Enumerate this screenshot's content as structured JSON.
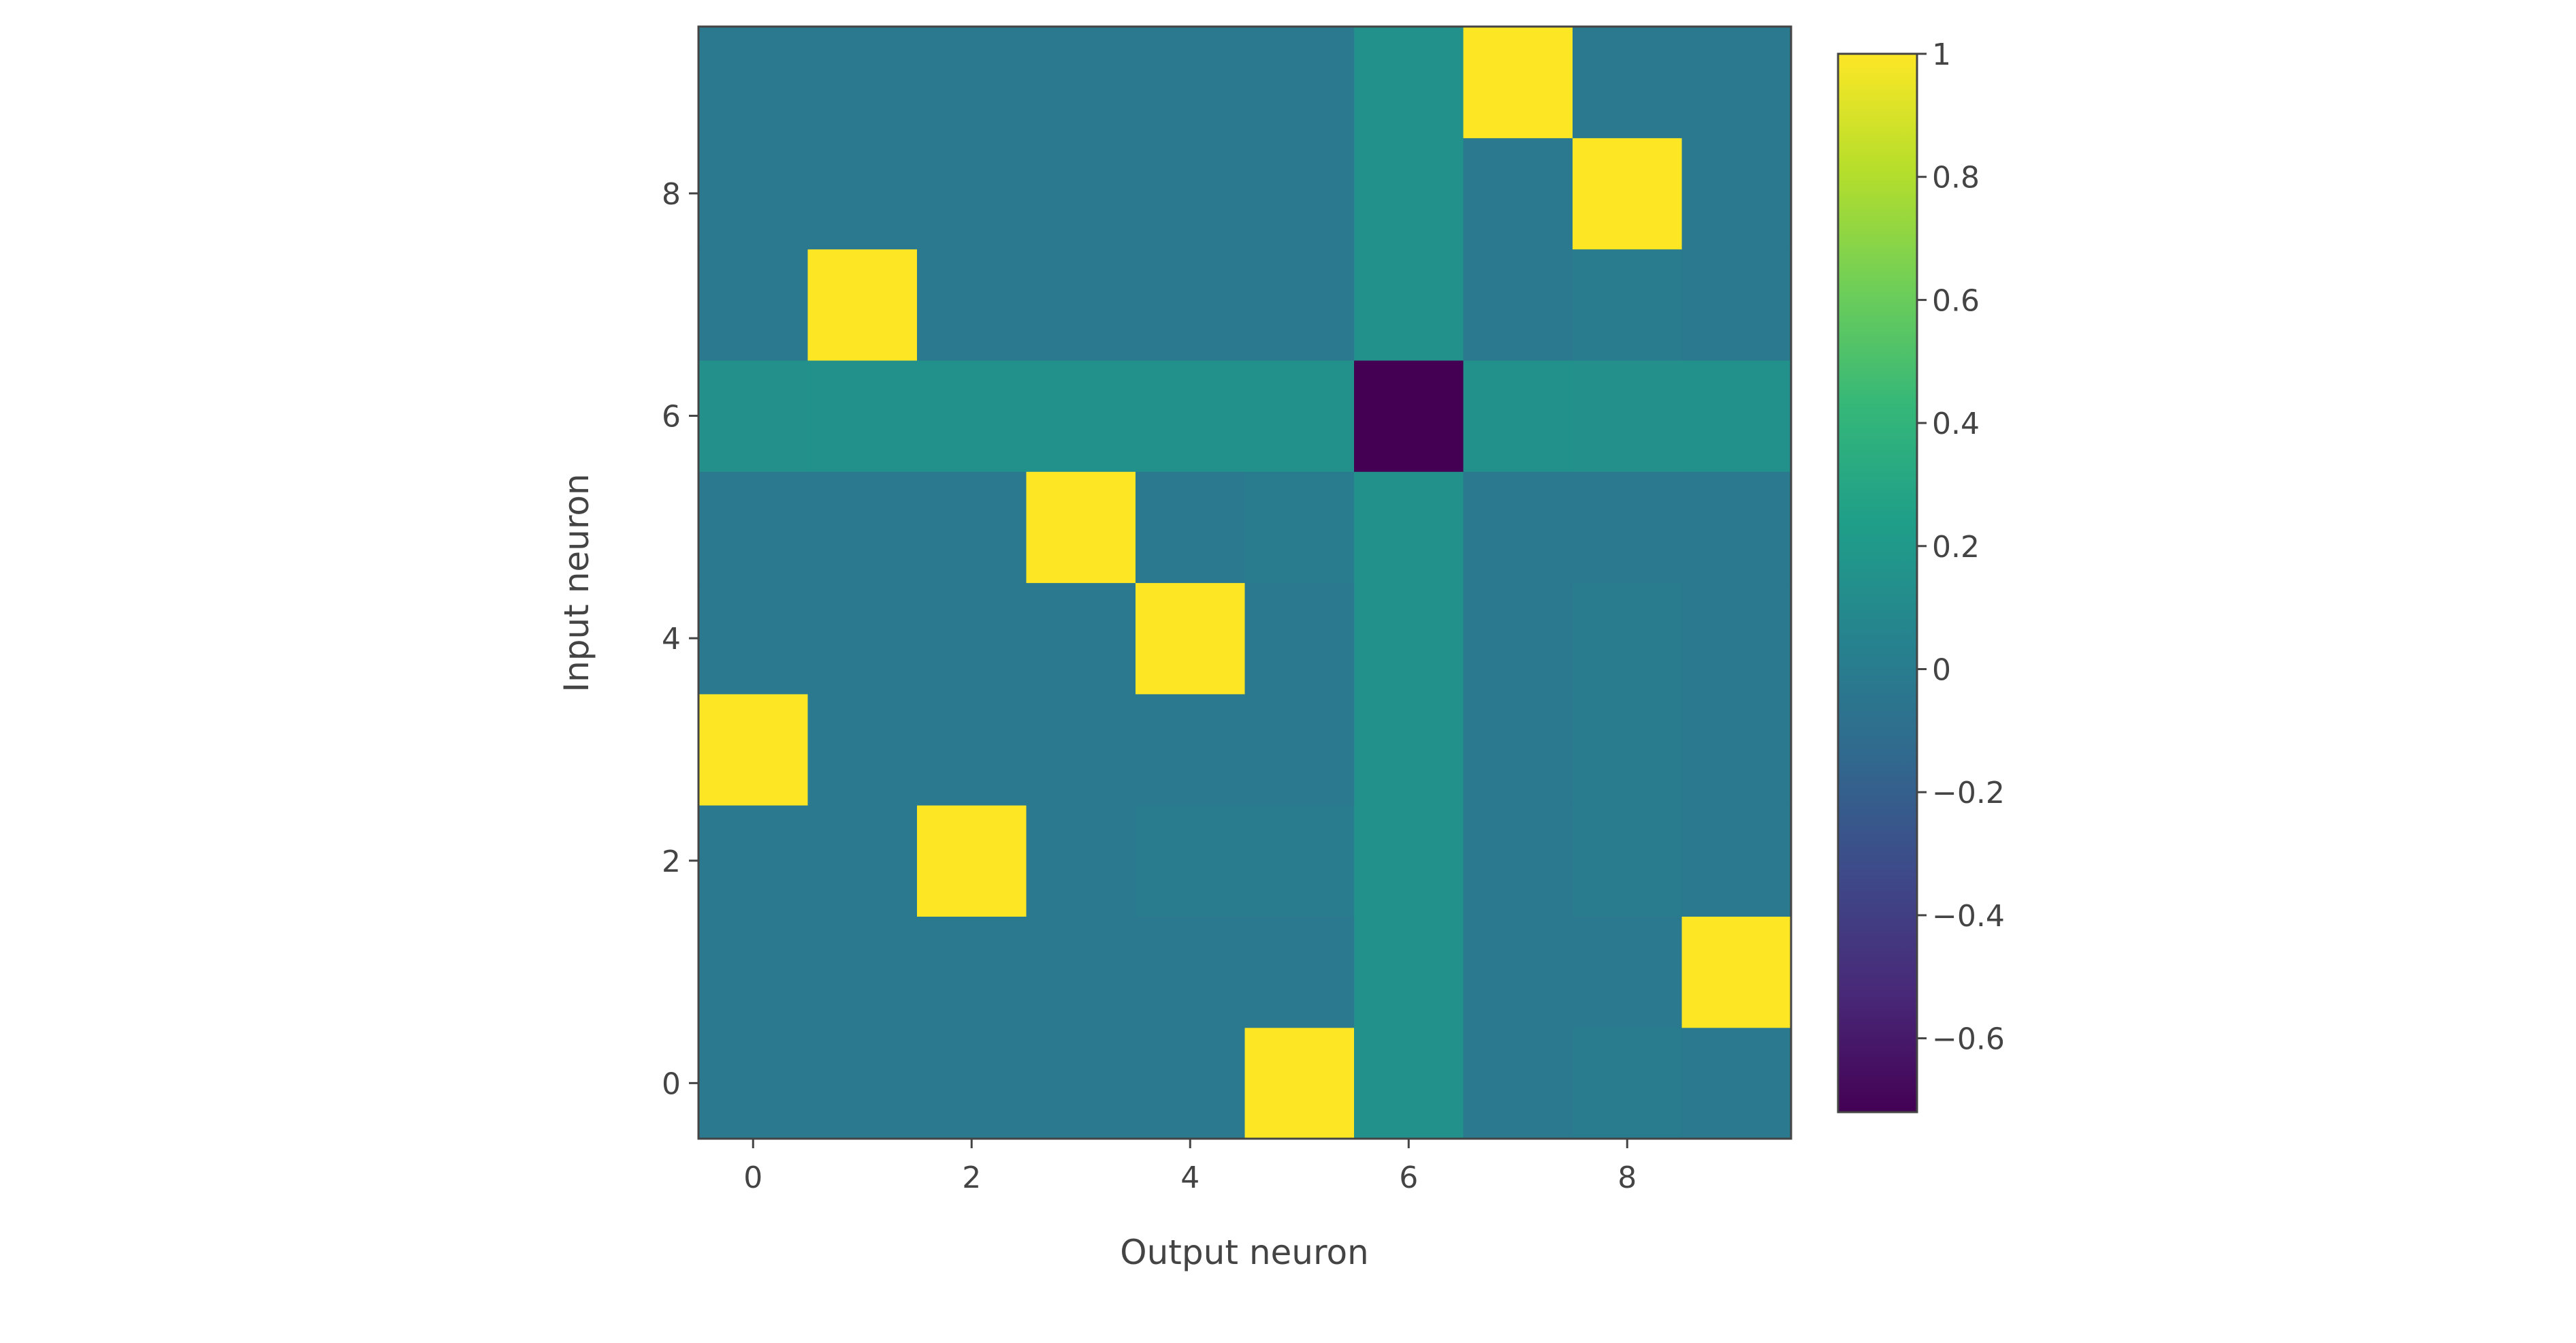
{
  "chart_data": {
    "type": "heatmap",
    "xlabel": "Output neuron",
    "ylabel": "Input neuron",
    "x": [
      0,
      1,
      2,
      3,
      4,
      5,
      6,
      7,
      8,
      9
    ],
    "y": [
      0,
      1,
      2,
      3,
      4,
      5,
      6,
      7,
      8,
      9
    ],
    "x_tick_labels": [
      "0",
      "2",
      "4",
      "6",
      "8"
    ],
    "y_tick_labels": [
      "0",
      "2",
      "4",
      "6",
      "8"
    ],
    "z": [
      [
        -0.02,
        -0.02,
        -0.02,
        -0.02,
        -0.02,
        1.0,
        0.15,
        -0.02,
        -0.01,
        -0.02
      ],
      [
        -0.02,
        -0.02,
        -0.02,
        -0.02,
        -0.02,
        -0.02,
        0.15,
        -0.02,
        -0.02,
        1.0
      ],
      [
        -0.02,
        -0.02,
        1.0,
        -0.02,
        -0.01,
        -0.01,
        0.15,
        -0.02,
        -0.01,
        -0.02
      ],
      [
        1.0,
        -0.02,
        -0.02,
        -0.02,
        -0.02,
        -0.02,
        0.15,
        -0.02,
        -0.01,
        -0.02
      ],
      [
        -0.02,
        -0.02,
        -0.02,
        -0.02,
        1.0,
        -0.02,
        0.15,
        -0.02,
        -0.01,
        -0.02
      ],
      [
        -0.02,
        -0.02,
        -0.02,
        1.0,
        -0.02,
        -0.01,
        0.15,
        -0.02,
        -0.02,
        -0.02
      ],
      [
        0.14,
        0.15,
        0.15,
        0.15,
        0.15,
        0.15,
        -0.72,
        0.15,
        0.14,
        0.15
      ],
      [
        -0.02,
        1.0,
        -0.02,
        -0.02,
        -0.02,
        -0.02,
        0.15,
        -0.02,
        -0.01,
        -0.02
      ],
      [
        -0.02,
        -0.02,
        -0.02,
        -0.02,
        -0.02,
        -0.02,
        0.15,
        -0.02,
        1.0,
        -0.02
      ],
      [
        -0.02,
        -0.02,
        -0.02,
        -0.02,
        -0.02,
        -0.02,
        0.15,
        1.0,
        -0.02,
        -0.02
      ]
    ],
    "colorscale": "viridis",
    "zmin": -0.72,
    "zmax": 1.0,
    "colorbar_ticks": [
      1,
      0.8,
      0.6,
      0.4,
      0.2,
      0,
      -0.2,
      -0.4,
      -0.6
    ],
    "colorbar_tick_labels": [
      "1",
      "0.8",
      "0.6",
      "0.4",
      "0.2",
      "0",
      "−0.2",
      "−0.4",
      "−0.6"
    ],
    "grid": false
  }
}
